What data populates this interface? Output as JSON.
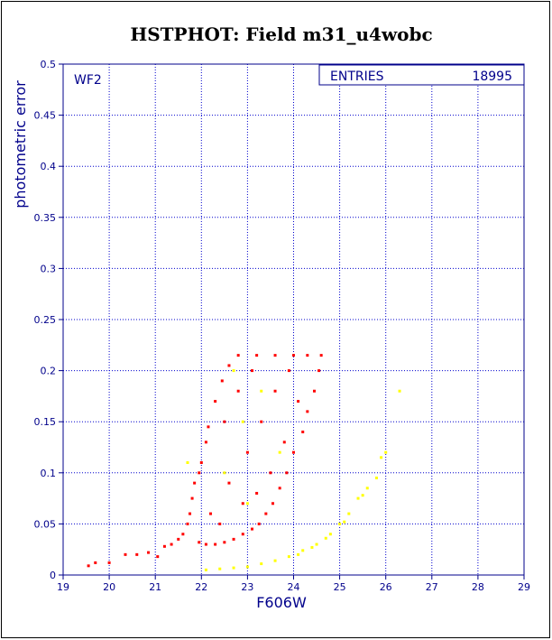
{
  "colors": {
    "axis": "#00008b",
    "grid": "#0000cd",
    "title": "#0000ff",
    "series_red": "#ff0000",
    "series_yellow": "#ffff00"
  },
  "chart_data": {
    "type": "scatter",
    "title": "HSTPHOT: Field m31_u4wobc",
    "xlabel": "F606W",
    "ylabel": "photometric error",
    "xlim": [
      19,
      29
    ],
    "ylim": [
      0,
      0.5
    ],
    "x_ticks": [
      "19",
      "20",
      "21",
      "22",
      "23",
      "24",
      "25",
      "26",
      "27",
      "28",
      "29"
    ],
    "y_ticks": [
      "0",
      "0.05",
      "0.1",
      "0.15",
      "0.2",
      "0.25",
      "0.3",
      "0.35",
      "0.4",
      "0.45",
      "0.5"
    ],
    "grid": true,
    "panel_label": "WF2",
    "stats": {
      "label": "ENTRIES",
      "value": "18995"
    },
    "series": [
      {
        "color": "red",
        "points": [
          [
            19.55,
            0.009
          ],
          [
            19.7,
            0.012
          ],
          [
            20.0,
            0.012
          ],
          [
            20.35,
            0.02
          ],
          [
            20.6,
            0.02
          ],
          [
            20.85,
            0.022
          ],
          [
            21.05,
            0.018
          ],
          [
            21.2,
            0.028
          ],
          [
            21.35,
            0.03
          ],
          [
            21.5,
            0.035
          ],
          [
            21.6,
            0.04
          ],
          [
            21.7,
            0.05
          ],
          [
            21.75,
            0.06
          ],
          [
            21.8,
            0.075
          ],
          [
            21.85,
            0.09
          ],
          [
            21.95,
            0.1
          ],
          [
            22.0,
            0.11
          ],
          [
            22.1,
            0.13
          ],
          [
            22.15,
            0.145
          ],
          [
            22.3,
            0.17
          ],
          [
            22.45,
            0.19
          ],
          [
            22.6,
            0.205
          ],
          [
            22.8,
            0.215
          ],
          [
            23.2,
            0.215
          ],
          [
            23.6,
            0.215
          ],
          [
            24.0,
            0.215
          ],
          [
            24.3,
            0.215
          ],
          [
            24.6,
            0.215
          ],
          [
            24.55,
            0.2
          ],
          [
            24.45,
            0.18
          ],
          [
            24.3,
            0.16
          ],
          [
            24.2,
            0.14
          ],
          [
            24.0,
            0.12
          ],
          [
            23.85,
            0.1
          ],
          [
            23.7,
            0.085
          ],
          [
            23.55,
            0.07
          ],
          [
            23.4,
            0.06
          ],
          [
            23.25,
            0.05
          ],
          [
            23.1,
            0.045
          ],
          [
            22.9,
            0.04
          ],
          [
            22.7,
            0.035
          ],
          [
            22.5,
            0.032
          ],
          [
            22.3,
            0.03
          ],
          [
            22.1,
            0.03
          ],
          [
            21.95,
            0.032
          ],
          [
            22.2,
            0.06
          ],
          [
            22.6,
            0.09
          ],
          [
            23.0,
            0.12
          ],
          [
            23.3,
            0.15
          ],
          [
            23.6,
            0.18
          ],
          [
            23.9,
            0.2
          ],
          [
            22.5,
            0.15
          ],
          [
            22.8,
            0.18
          ],
          [
            23.1,
            0.2
          ],
          [
            23.5,
            0.1
          ],
          [
            23.2,
            0.08
          ],
          [
            22.9,
            0.07
          ],
          [
            22.4,
            0.05
          ],
          [
            23.8,
            0.13
          ],
          [
            24.1,
            0.17
          ]
        ]
      },
      {
        "color": "yellow",
        "points": [
          [
            22.1,
            0.005
          ],
          [
            22.4,
            0.006
          ],
          [
            22.7,
            0.007
          ],
          [
            23.0,
            0.008
          ],
          [
            23.3,
            0.011
          ],
          [
            23.6,
            0.014
          ],
          [
            23.9,
            0.018
          ],
          [
            24.2,
            0.024
          ],
          [
            24.5,
            0.03
          ],
          [
            24.8,
            0.04
          ],
          [
            25.0,
            0.05
          ],
          [
            25.2,
            0.06
          ],
          [
            25.4,
            0.075
          ],
          [
            25.6,
            0.085
          ],
          [
            25.8,
            0.095
          ],
          [
            25.9,
            0.115
          ],
          [
            26.0,
            0.12
          ],
          [
            26.3,
            0.18
          ],
          [
            22.5,
            0.1
          ],
          [
            22.9,
            0.15
          ],
          [
            23.3,
            0.18
          ],
          [
            23.7,
            0.12
          ],
          [
            22.7,
            0.2
          ],
          [
            23.0,
            0.07
          ],
          [
            21.7,
            0.11
          ],
          [
            24.1,
            0.02
          ],
          [
            24.4,
            0.027
          ],
          [
            24.7,
            0.036
          ],
          [
            25.1,
            0.052
          ],
          [
            25.5,
            0.078
          ]
        ]
      }
    ]
  }
}
